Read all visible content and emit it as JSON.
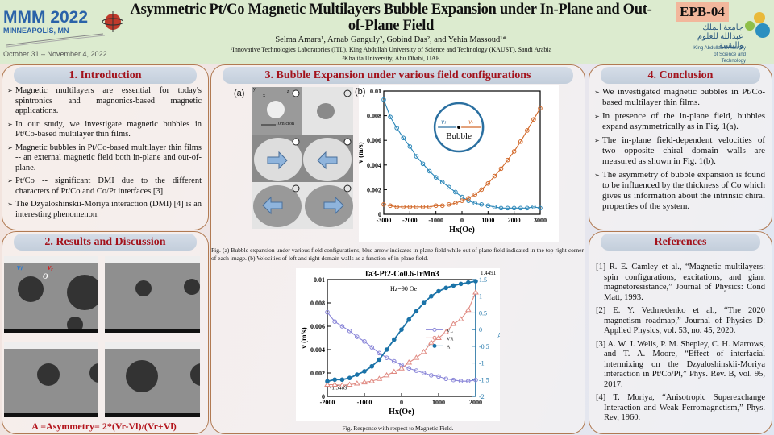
{
  "header": {
    "conference": "MMM 2022",
    "city": "MINNEAPOLIS, MN",
    "dates": "October 31 – November 4, 2022",
    "title": "Asymmetric Pt/Co Magnetic Multilayers Bubble Expansion under In-Plane and Out-of-Plane Field",
    "authors": "Selma Amara¹, Arnab Ganguly², Gobind Das², and Yehia Massoud¹*",
    "affiliation1": "¹Innovative Technologies Laboratories (ITL), King Abdullah University of Science and Technology (KAUST), Saudi Arabia",
    "affiliation2": "²Khalifa University, Abu Dhabi, UAE",
    "poster_id": "EPB-04",
    "kaust_arabic": "جامعة الملك عبدالله للعلوم والتقنية",
    "kaust_english": "King Abdullah University of Science and Technology"
  },
  "introduction": {
    "heading": "1. Introduction",
    "items": [
      "Magnetic multilayers are essential for today's spintronics and magnonics-based magnetic applications.",
      "In our study, we investigate magnetic bubbles in Pt/Co-based multilayer thin films.",
      "Magnetic bubbles in Pt/Co-based multilayer thin films -- an external magnetic field both in-plane and out-of-plane.",
      "Pt/Co -- significant DMI due to the different characters of Pt/Co and Co/Pt interfaces [3].",
      "The Dzyaloshinskii-Moriya interaction (DMI) [4] is an interesting phenomenon."
    ]
  },
  "results": {
    "heading": "2. Results and Discussion",
    "label_vl": "vₗ",
    "label_vr": "vᵣ",
    "label_o": "O",
    "formula": "A =Asymmetry= 2*(Vr-Vl)/(Vr+Vl)"
  },
  "bubble_section": {
    "heading": "3. Bubble Expansion under various field configurations",
    "panel_a": "(a)",
    "panel_b": "(b)",
    "scale_bar": "10micron",
    "axis_y": "y",
    "axis_x": "x",
    "axis_z": "z",
    "caption1": "Fig. (a) Bubble expansion under various field configurations, blue arrow indicates in-plane field while out of plane field indicated in the top right corner of each image. (b) Velocities of left and right domain walls as a function of in-plane field.",
    "caption2": "Fig.  Response with respect to Magnetic Field."
  },
  "conclusion": {
    "heading": "4. Conclusion",
    "items": [
      "We investigated magnetic bubbles in Pt/Co-based multilayer thin films.",
      "In presence of the in-plane field, bubbles expand asymmetrically as in Fig. 1(a).",
      "The in-plane field-dependent velocities of two opposite chiral domain walls are measured as shown in Fig. 1(b).",
      "The asymmetry of bubble expansion is found to be influenced by the thickness of Co which gives us information about the intrinsic chiral properties of the system."
    ]
  },
  "references": {
    "heading": "References",
    "items": [
      "[1] R. E. Camley et al., “Magnetic multilayers: spin configurations, excitations, and giant magnetoresistance,” Journal of Physics: Cond Matt, 1993.",
      "[2] E. Y. Vedmedenko et al., “The 2020 magnetism roadmap,” Journal of Physics D: Applied Physics, vol. 53, no. 45, 2020.",
      "[3] A. W. J. Wells, P. M. Shepley, C. H. Marrows, and T. A. Moore, “Effect of interfacial intermixing on the Dzyaloshinskii-Moriya interaction in Pt/Co/Pt,” Phys. Rev. B, vol. 95, 2017.",
      "[4] T. Moriya, “Anisotropic Superexchange Interaction and Weak Ferromagnetism,” Phys. Rev, 1960."
    ]
  },
  "colors": {
    "blue": "#2a86b8",
    "orange": "#d2692a",
    "vl": "#8a86d8",
    "vr": "#e08a82",
    "a": "#1b73a8",
    "heading": "#a3131c"
  },
  "chart_data": [
    {
      "type": "line",
      "title": "",
      "xlabel": "Hx(Oe)",
      "ylabel": "v (m/s)",
      "xlim": [
        -3000,
        3000
      ],
      "ylim": [
        0,
        0.01
      ],
      "xticks": [
        "-3000",
        "-2000",
        "-1000",
        "0",
        "1000",
        "2000",
        "3000"
      ],
      "yticks": [
        "0",
        "0.002",
        "0.004",
        "0.006",
        "0.008",
        "0.01"
      ],
      "inset": {
        "label": "Bubble",
        "vl": "vₗ",
        "vr": "vᵣ"
      },
      "x": [
        -3000,
        -2750,
        -2500,
        -2250,
        -2000,
        -1750,
        -1500,
        -1250,
        -1000,
        -750,
        -500,
        -250,
        0,
        250,
        500,
        750,
        1000,
        1250,
        1500,
        1750,
        2000,
        2250,
        2500,
        2750,
        3000
      ],
      "series": [
        {
          "name": "v_l",
          "color": "#2a86b8",
          "values": [
            0.0093,
            0.0079,
            0.007,
            0.0062,
            0.0055,
            0.0047,
            0.0041,
            0.0035,
            0.003,
            0.0026,
            0.0022,
            0.0018,
            0.0014,
            0.0011,
            0.0009,
            0.0008,
            0.0007,
            0.0006,
            0.0005,
            0.0005,
            0.0005,
            0.0005,
            0.0005,
            0.0006,
            0.0005
          ]
        },
        {
          "name": "v_r",
          "color": "#d2692a",
          "values": [
            0.0008,
            0.0007,
            0.0006,
            0.0006,
            0.0006,
            0.0006,
            0.0006,
            0.0006,
            0.0007,
            0.0007,
            0.0008,
            0.0009,
            0.0011,
            0.0013,
            0.0016,
            0.002,
            0.0025,
            0.0031,
            0.0037,
            0.0044,
            0.0051,
            0.0059,
            0.0068,
            0.0077,
            0.0086
          ]
        }
      ]
    },
    {
      "type": "line",
      "title": "Ta3-Pt2-Co0.6-IrMn3",
      "annotation": "Hz=90 Oe",
      "xlabel": "Hx(Oe)",
      "ylabel": "v (m/s)",
      "y2label": "A",
      "xlim": [
        -2000,
        2000
      ],
      "ylim": [
        0,
        0.01
      ],
      "y2lim": [
        -2,
        1.5
      ],
      "xticks": [
        "-2000",
        "-1000",
        "0",
        "1000",
        "2000"
      ],
      "yticks": [
        "0",
        "0.002",
        "0.004",
        "0.006",
        "0.008",
        "0.01"
      ],
      "y2ticks": [
        "-2",
        "-1.5",
        "-1",
        "-0.5",
        "0",
        "0.5",
        "1",
        "1.5"
      ],
      "y2_min_label": "-1.5489",
      "y2_max_label": "1.4491",
      "legend": "middle-right",
      "x": [
        -2000,
        -1800,
        -1600,
        -1400,
        -1200,
        -1000,
        -800,
        -600,
        -400,
        -200,
        0,
        200,
        400,
        600,
        800,
        1000,
        1200,
        1400,
        1600,
        1800,
        2000
      ],
      "series": [
        {
          "name": "VL",
          "axis": "left",
          "color": "#8a86d8",
          "marker": "circle-open",
          "values": [
            0.0072,
            0.0064,
            0.006,
            0.0056,
            0.0051,
            0.0047,
            0.0042,
            0.0037,
            0.0033,
            0.003,
            0.0027,
            0.0024,
            0.0022,
            0.002,
            0.0018,
            0.0017,
            0.0015,
            0.0014,
            0.0013,
            0.0013,
            0.0014
          ]
        },
        {
          "name": "VR",
          "axis": "left",
          "color": "#e08a82",
          "marker": "triangle-open",
          "values": [
            0.001,
            0.001,
            0.00095,
            0.001,
            0.0011,
            0.0012,
            0.0013,
            0.0015,
            0.0018,
            0.0021,
            0.0024,
            0.0029,
            0.0033,
            0.0038,
            0.0046,
            0.005,
            0.0055,
            0.0062,
            0.0066,
            0.0074,
            0.0089
          ]
        },
        {
          "name": "A",
          "axis": "right",
          "color": "#1b73a8",
          "marker": "circle-filled",
          "values": [
            -1.55,
            -1.5,
            -1.5,
            -1.45,
            -1.35,
            -1.25,
            -1.1,
            -0.9,
            -0.6,
            -0.3,
            0,
            0.3,
            0.55,
            0.8,
            1.0,
            1.15,
            1.25,
            1.32,
            1.37,
            1.41,
            1.45
          ]
        }
      ]
    }
  ]
}
